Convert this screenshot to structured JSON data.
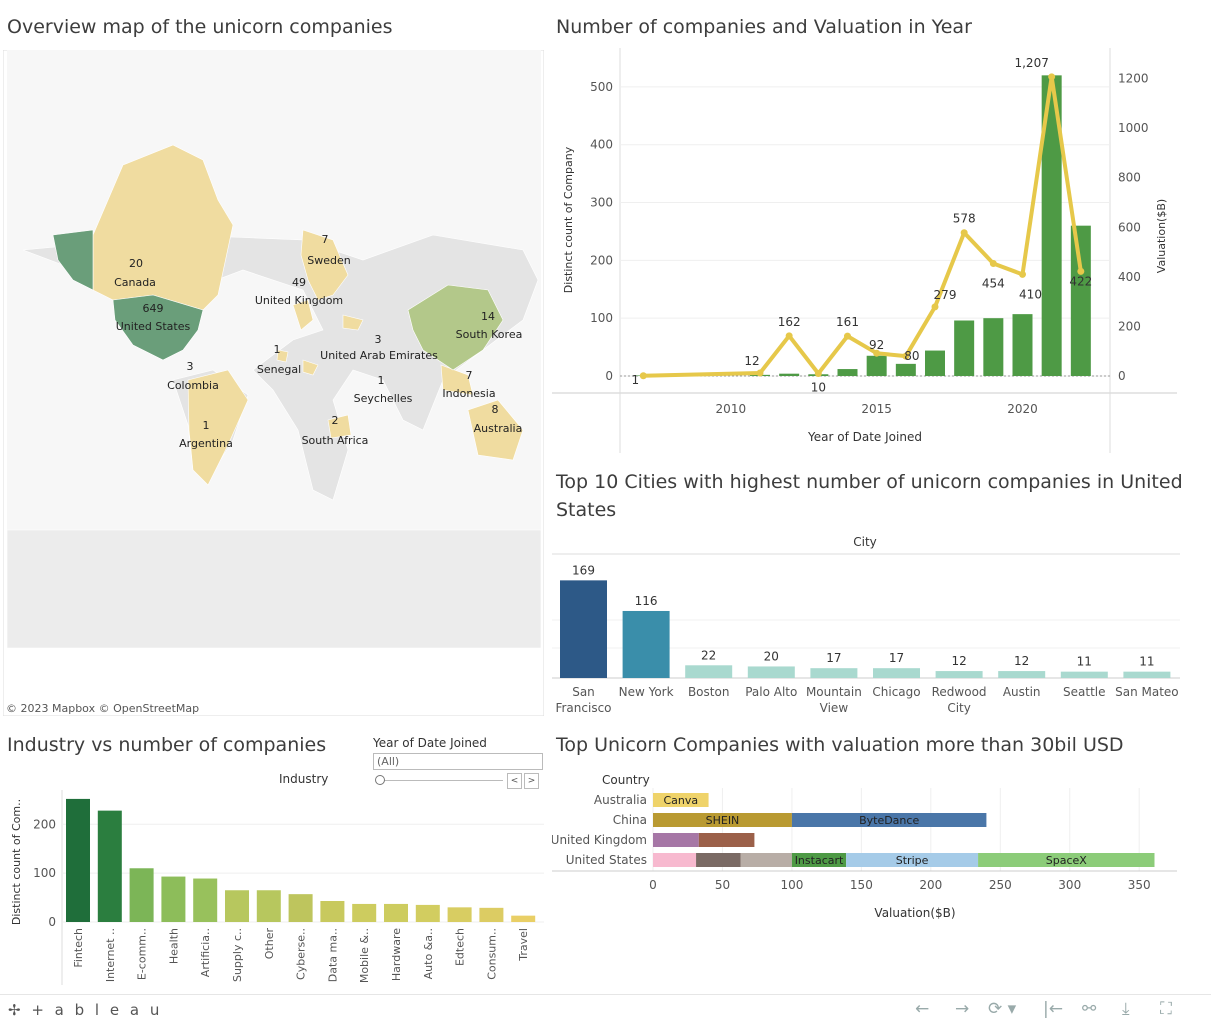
{
  "map": {
    "title": "Overview map of the unicorn companies",
    "credit": "© 2023 Mapbox  © OpenStreetMap",
    "labels": [
      {
        "name": "Canada",
        "count": "20"
      },
      {
        "name": "United States",
        "count": "649"
      },
      {
        "name": "Sweden",
        "count": "7"
      },
      {
        "name": "United Kingdom",
        "count": "49"
      },
      {
        "name": "South Korea",
        "count": "14"
      },
      {
        "name": "United Arab Emirates",
        "count": "3"
      },
      {
        "name": "Senegal",
        "count": "1"
      },
      {
        "name": "Colombia",
        "count": "3"
      },
      {
        "name": "Seychelles",
        "count": "1"
      },
      {
        "name": "Indonesia",
        "count": "7"
      },
      {
        "name": "Australia",
        "count": "8"
      },
      {
        "name": "Argentina",
        "count": "1"
      },
      {
        "name": "South Africa",
        "count": "2"
      }
    ],
    "colors": {
      "high": "#6a9e7a",
      "mid": "#b3c88a",
      "low": "#f0dca0",
      "none": "#e4e4e4"
    }
  },
  "filter": {
    "label": "Year of Date Joined",
    "value": "(All)",
    "prev": "<",
    "next": ">"
  },
  "footer": {
    "logo": "✢ + a b l e a u",
    "controls": [
      "←",
      "→",
      "⟳ ▾",
      "|←",
      "⚯",
      "⤓",
      "⛶"
    ]
  },
  "chart_data": [
    {
      "type": "bar",
      "title": "Number of companies and Valuation in Year",
      "xlabel": "Year of Date Joined",
      "ylabel": "Distinct count of Company",
      "y2label": "Valuation($B)",
      "xticks": [
        "2010",
        "2015",
        "2020"
      ],
      "yticks": [
        "0",
        "100",
        "200",
        "300",
        "400",
        "500"
      ],
      "y2ticks": [
        "0",
        "200",
        "400",
        "600",
        "800",
        "1000",
        "1200"
      ],
      "ylim": [
        0,
        550
      ],
      "y2lim": [
        0,
        1283
      ],
      "xlim": [
        2006.2,
        2023.0
      ],
      "bar_color": "#4e9a45",
      "line_color": "#e6c84a",
      "x": [
        2007,
        2011,
        2012,
        2013,
        2014,
        2015,
        2016,
        2017,
        2018,
        2019,
        2020,
        2021,
        2022
      ],
      "bars": [
        1,
        2,
        4,
        3,
        12,
        35,
        21,
        44,
        96,
        100,
        107,
        520,
        260
      ],
      "series": [
        {
          "values": [
            1,
            12,
            162,
            10,
            161,
            92,
            80,
            279,
            578,
            454,
            410,
            1207,
            422
          ]
        }
      ],
      "point_labels": [
        "1",
        "12",
        "162",
        "10",
        "161",
        "92",
        "80",
        "279",
        "578",
        "454",
        "410",
        "1,207",
        "422"
      ]
    },
    {
      "type": "bar",
      "title": "Top 10 Cities with highest number of unicorn companies in United States",
      "header": "City",
      "categories": [
        "San Francisco",
        "New York",
        "Boston",
        "Palo Alto",
        "Mountain View",
        "Chicago",
        "Redwood City",
        "Austin",
        "Seattle",
        "San Mateo"
      ],
      "category_lines": [
        [
          "San",
          "Francisco"
        ],
        [
          "New York"
        ],
        [
          "Boston"
        ],
        [
          "Palo Alto"
        ],
        [
          "Mountain",
          "View"
        ],
        [
          "Chicago"
        ],
        [
          "Redwood",
          "City"
        ],
        [
          "Austin"
        ],
        [
          "Seattle"
        ],
        [
          "San Mateo"
        ]
      ],
      "values": [
        169,
        116,
        22,
        20,
        17,
        17,
        12,
        12,
        11,
        11
      ],
      "colors": [
        "#2d5987",
        "#3a8eaa",
        "#a9d9cf",
        "#a9d9cf",
        "#a9d9cf",
        "#a9d9cf",
        "#a9d9cf",
        "#a9d9cf",
        "#a9d9cf",
        "#a9d9cf"
      ],
      "ylim": [
        0,
        180
      ]
    },
    {
      "type": "bar",
      "title": "Industry vs number of companies",
      "header": "Industry",
      "ylabel": "Distinct count of Com..",
      "yticks": [
        "0",
        "100",
        "200"
      ],
      "ylim": [
        0,
        260
      ],
      "categories": [
        "Fintech",
        "Internet ..",
        "E-comm..",
        "Health",
        "Artificia..",
        "Supply c..",
        "Other",
        "Cyberse..",
        "Data ma..",
        "Mobile &..",
        "Hardware",
        "Auto &a..",
        "Edtech",
        "Consum..",
        "Travel"
      ],
      "values": [
        252,
        228,
        110,
        93,
        89,
        65,
        65,
        57,
        43,
        37,
        37,
        35,
        30,
        29,
        13
      ],
      "colors": [
        "#1f6e3a",
        "#2b7e3f",
        "#7cb557",
        "#8dbd5a",
        "#98c15c",
        "#b7c75e",
        "#b7c75e",
        "#bec55d",
        "#c8c95e",
        "#cdcc5f",
        "#cdcc5f",
        "#d2cd60",
        "#d8cd62",
        "#dccc63",
        "#e9cf66"
      ]
    },
    {
      "type": "bar",
      "stacked": true,
      "orientation": "horizontal",
      "title": "Top Unicorn Companies with valuation more than 30bil USD",
      "header": "Country",
      "xlabel": "Valuation($B)",
      "xticks": [
        "0",
        "50",
        "100",
        "150",
        "200",
        "250",
        "300",
        "350"
      ],
      "xlim": [
        0,
        370
      ],
      "categories": [
        "Australia",
        "China",
        "United Kingdom",
        "United States"
      ],
      "segments": [
        [
          {
            "label": "Canva",
            "value": 40,
            "color": "#efd36a"
          }
        ],
        [
          {
            "label": "SHEIN",
            "value": 100,
            "color": "#b99a32"
          },
          {
            "label": "ByteDance",
            "value": 140,
            "color": "#4a76a8"
          }
        ],
        [
          {
            "label": "",
            "value": 33,
            "color": "#a677a6"
          },
          {
            "label": "",
            "value": 40,
            "color": "#9b6049"
          }
        ],
        [
          {
            "label": "",
            "value": 31,
            "color": "#f7b9cf"
          },
          {
            "label": "",
            "value": 32,
            "color": "#7a6a64"
          },
          {
            "label": "",
            "value": 37,
            "color": "#b8ada6"
          },
          {
            "label": "Instacart",
            "value": 39,
            "color": "#4e9a45"
          },
          {
            "label": "Stripe",
            "value": 95,
            "color": "#a5cbe8"
          },
          {
            "label": "SpaceX",
            "value": 127,
            "color": "#8ccc79"
          }
        ]
      ]
    }
  ]
}
